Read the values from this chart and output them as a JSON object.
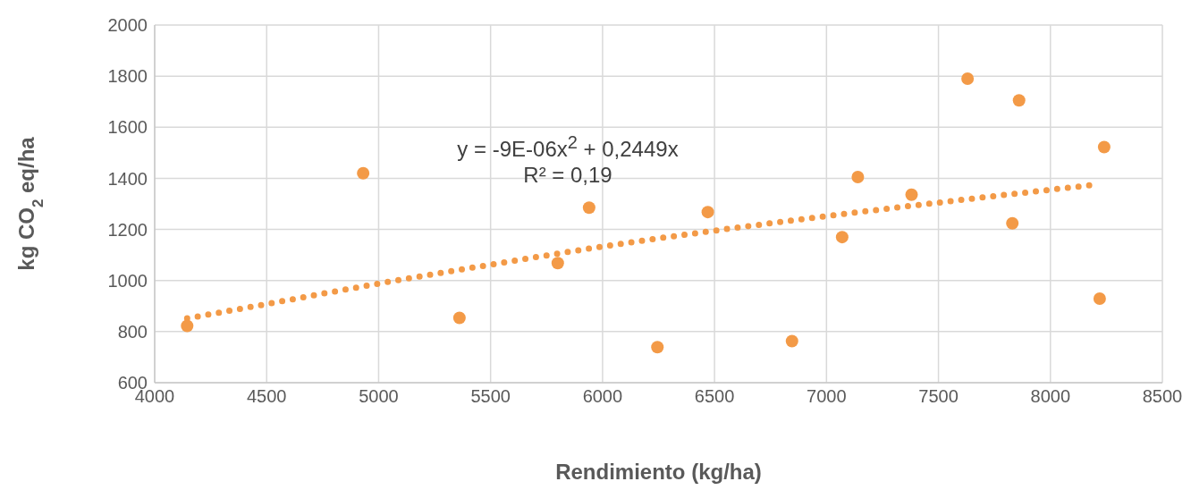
{
  "chart_data": {
    "type": "scatter",
    "xlabel": "Rendimiento (kg/ha)",
    "ylabel": "kg CO$_{2}$ eq/ha",
    "xlim": [
      4000,
      8500
    ],
    "xticks": [
      4000,
      4500,
      5000,
      5500,
      6000,
      6500,
      7000,
      7500,
      8000,
      8500
    ],
    "ylim": [
      600,
      2000
    ],
    "yticks": [
      600,
      800,
      1000,
      1200,
      1400,
      1600,
      1800,
      2000
    ],
    "grid": true,
    "annotations": [
      "y = -9E-06x$^{2}$ + 0,2449x",
      "R² = 0,19"
    ],
    "series": [
      {
        "marker": "circle",
        "color": "#f39a47",
        "x": [
          4145,
          4931,
          5361,
          5800,
          5940,
          6245,
          6470,
          6846,
          7070,
          7140,
          7380,
          7630,
          7860,
          7830,
          8220,
          8240
        ],
        "values": [
          822,
          1420,
          854,
          1068,
          1285,
          739,
          1268,
          763,
          1170,
          1405,
          1336,
          1790,
          1705,
          1224,
          929,
          1522
        ]
      },
      {
        "type": "line",
        "marker": "none",
        "color": "#f39a47",
        "line_style": "dotted",
        "x": [
          4145,
          4500,
          5000,
          5500,
          6000,
          6500,
          7000,
          7500,
          8200
        ],
        "values": [
          852,
          908,
          988,
          1062,
          1133,
          1195,
          1252,
          1305,
          1375
        ]
      }
    ]
  }
}
